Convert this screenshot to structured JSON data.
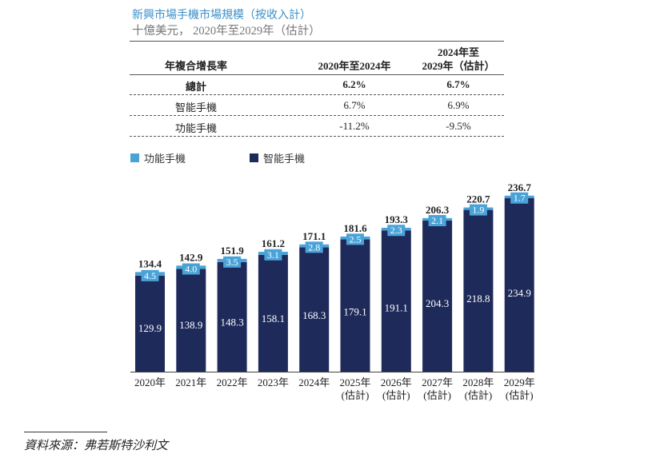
{
  "title": "新興市場手機市場規模（按收入計）",
  "subtitle": "十億美元， 2020年至2029年（估計）",
  "cagr_table": {
    "header": [
      "年複合增長率",
      "2020年至2024年",
      "2024年至",
      "2029年（估計）"
    ],
    "rows": [
      {
        "label": "總計",
        "a": "6.2%",
        "b": "6.7%"
      },
      {
        "label": "智能手機",
        "a": "6.7%",
        "b": "6.9%"
      },
      {
        "label": "功能手機",
        "a": "-11.2%",
        "b": "-9.5%"
      }
    ]
  },
  "source": "資料來源：弗若斯特沙利文",
  "colors": {
    "feature": "#4aa3d8",
    "smart": "#1e2a5a"
  },
  "chart_data": {
    "type": "bar",
    "stacked": true,
    "categories": [
      "2020年",
      "2021年",
      "2022年",
      "2023年",
      "2024年",
      "2025年",
      "2026年",
      "2027年",
      "2028年",
      "2029年"
    ],
    "category_sub": [
      "",
      "",
      "",
      "",
      "",
      "(估計)",
      "(估計)",
      "(估計)",
      "(估計)",
      "(估計)"
    ],
    "series": [
      {
        "name": "智能手機",
        "values": [
          129.9,
          138.9,
          148.3,
          158.1,
          168.3,
          179.1,
          191.1,
          204.3,
          218.8,
          234.9
        ]
      },
      {
        "name": "功能手機",
        "values": [
          4.5,
          4.0,
          3.5,
          3.1,
          2.8,
          2.5,
          2.3,
          2.1,
          1.9,
          1.7
        ]
      }
    ],
    "totals": [
      134.4,
      142.9,
      151.9,
      161.2,
      171.1,
      181.6,
      193.3,
      206.3,
      220.7,
      236.7
    ],
    "legend_placement": "top-left",
    "grid": false
  }
}
